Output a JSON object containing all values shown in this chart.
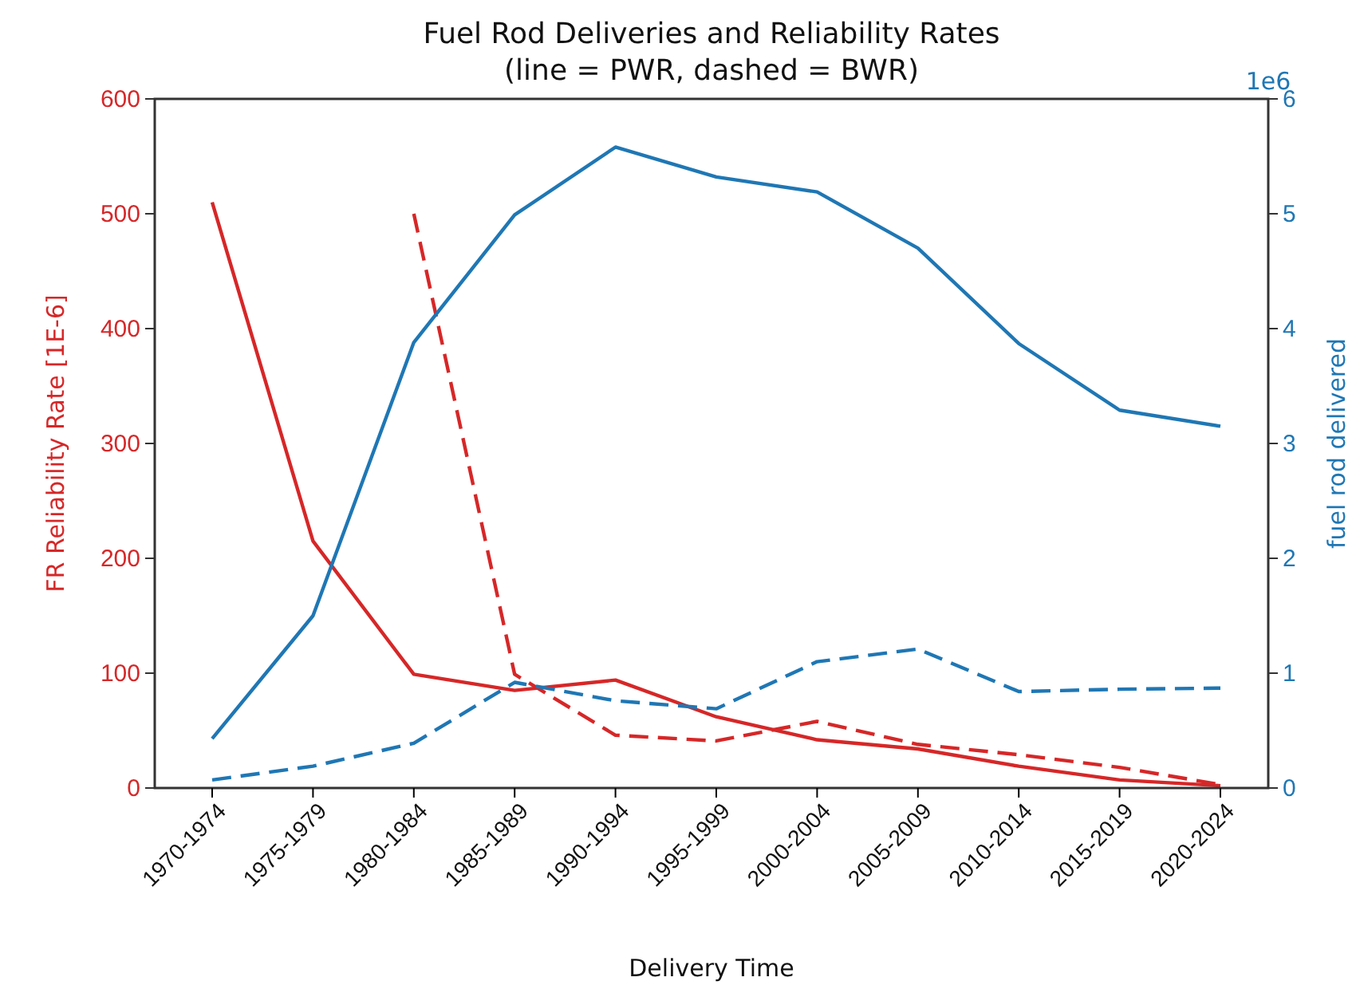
{
  "chart_data": {
    "type": "line",
    "title": "Fuel Rod Deliveries and Reliability Rates",
    "subtitle": "(line = PWR, dashed = BWR)",
    "xlabel": "Delivery Time",
    "ylabel": "FR Reliability Rate [1E-6]",
    "y2label": "fuel rod delivered",
    "categories": [
      "1970-1974",
      "1975-1979",
      "1980-1984",
      "1985-1989",
      "1990-1994",
      "1995-1999",
      "2000-2004",
      "2005-2009",
      "2010-2014",
      "2015-2019",
      "2020-2024"
    ],
    "series": [
      {
        "color": "#d62728",
        "line_style": "solid",
        "values": [
          510,
          215,
          99,
          85,
          94,
          62,
          42,
          34,
          19,
          7,
          2
        ]
      },
      {
        "color": "#d62728",
        "line_style": "dashed",
        "values": [
          null,
          null,
          500,
          99,
          46,
          41,
          58,
          38,
          29,
          18,
          3
        ]
      },
      {
        "color": "#1f77b4",
        "line_style": "solid",
        "axis": "y2",
        "values": [
          0.43,
          1.5,
          3.88,
          4.99,
          5.58,
          5.32,
          5.19,
          4.7,
          3.87,
          3.29,
          3.15
        ]
      },
      {
        "color": "#1f77b4",
        "line_style": "dashed",
        "axis": "y2",
        "values": [
          0.07,
          0.19,
          0.39,
          0.92,
          0.76,
          0.69,
          1.1,
          1.21,
          0.84,
          0.86,
          0.87
        ]
      }
    ],
    "ylim": [
      0,
      600
    ],
    "yticks": [
      0,
      100,
      200,
      300,
      400,
      500,
      600
    ],
    "y2lim": [
      0,
      6
    ],
    "y2ticks": [
      0,
      1,
      2,
      3,
      4,
      5,
      6
    ],
    "annotations": [
      "1e6"
    ],
    "grid": false,
    "marker": "none"
  }
}
